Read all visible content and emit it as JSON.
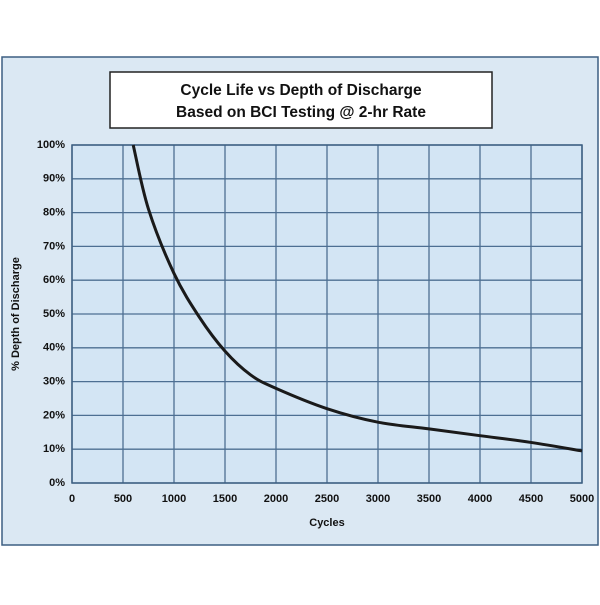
{
  "chart_data": {
    "type": "line",
    "title": "Cycle Life vs Depth of Discharge",
    "subtitle": "Based on BCI Testing @ 2-hr Rate",
    "x_label": "Cycles",
    "y_label": "% Depth of Discharge",
    "x": [
      600,
      750,
      1000,
      1250,
      1500,
      1750,
      2000,
      2500,
      3000,
      3500,
      4000,
      4500,
      5000
    ],
    "series": [
      {
        "color": "#1a1a1a",
        "values": [
          100,
          81,
          62,
          49,
          39,
          32,
          28,
          22,
          18,
          16,
          14,
          12,
          9.5
        ]
      }
    ],
    "xlim": [
      0,
      5000
    ],
    "xticks": [
      0,
      500,
      1000,
      1500,
      2000,
      2500,
      3000,
      3500,
      4000,
      4500,
      5000
    ],
    "ylim": [
      0,
      100
    ],
    "yticks": [
      {
        "value": 0,
        "label": "0%"
      },
      {
        "value": 10,
        "label": "10%"
      },
      {
        "value": 20,
        "label": "20%"
      },
      {
        "value": 30,
        "label": "30%"
      },
      {
        "value": 40,
        "label": "40%"
      },
      {
        "value": 50,
        "label": "50%"
      },
      {
        "value": 60,
        "label": "60%"
      },
      {
        "value": 70,
        "label": "70%"
      },
      {
        "value": 80,
        "label": "80%"
      },
      {
        "value": 90,
        "label": "90%"
      },
      {
        "value": 100,
        "label": "100%"
      }
    ],
    "grid": true
  }
}
